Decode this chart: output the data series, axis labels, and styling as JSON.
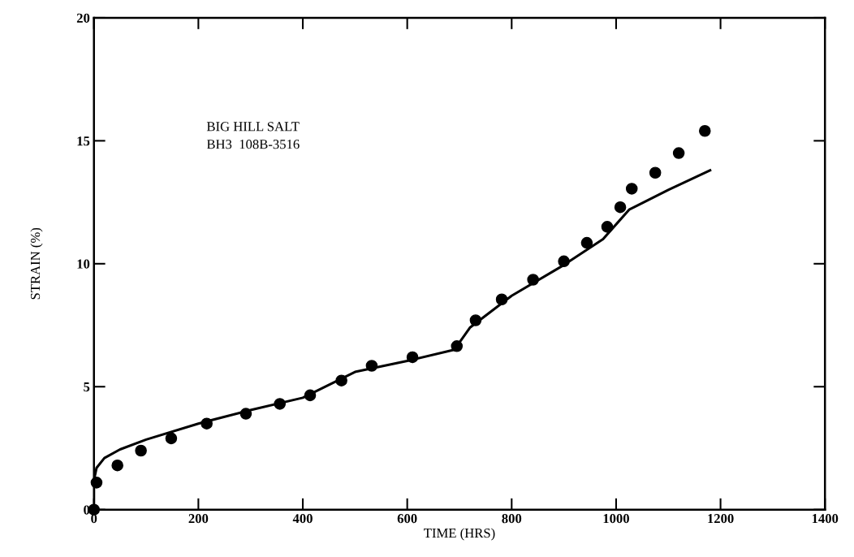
{
  "chart_data": {
    "type": "scatter",
    "xlabel": "TIME (HRS)",
    "ylabel": "STRAIN (%)",
    "xlim": [
      0,
      1400
    ],
    "xticks": [
      0,
      200,
      400,
      600,
      800,
      1000,
      1200,
      1400
    ],
    "ylim": [
      0,
      20
    ],
    "yticks": [
      0,
      5,
      10,
      15,
      20
    ],
    "grid": false,
    "legend": false,
    "marker": "circle",
    "annotations": [
      "BIG HILL SALT",
      "BH3  108B-3516"
    ],
    "series": [
      {
        "color": "#000000",
        "x": [
          0,
          5,
          45,
          90,
          148,
          216,
          291,
          356,
          414,
          474,
          532,
          610,
          695,
          731,
          781,
          841,
          900,
          944,
          983,
          1008,
          1030,
          1075,
          1120,
          1170
        ],
        "values": [
          0,
          1.1,
          1.8,
          2.4,
          2.9,
          3.5,
          3.9,
          4.3,
          4.65,
          5.25,
          5.85,
          6.2,
          6.65,
          7.7,
          8.55,
          9.35,
          10.1,
          10.85,
          11.5,
          12.3,
          13.05,
          13.7,
          14.5,
          15.4
        ]
      },
      {
        "type": "line",
        "color": "#000000",
        "line_style": "solid",
        "marker": "none",
        "x": [
          0,
          0,
          5,
          20,
          50,
          100,
          200,
          300,
          400,
          500,
          600,
          690,
          720,
          800,
          900,
          975,
          1025,
          1100,
          1180
        ],
        "values": [
          0,
          1.2,
          1.7,
          2.1,
          2.45,
          2.85,
          3.5,
          4.05,
          4.55,
          5.6,
          6.05,
          6.5,
          7.4,
          8.7,
          9.95,
          11.0,
          12.2,
          13.0,
          13.8
        ]
      }
    ]
  }
}
